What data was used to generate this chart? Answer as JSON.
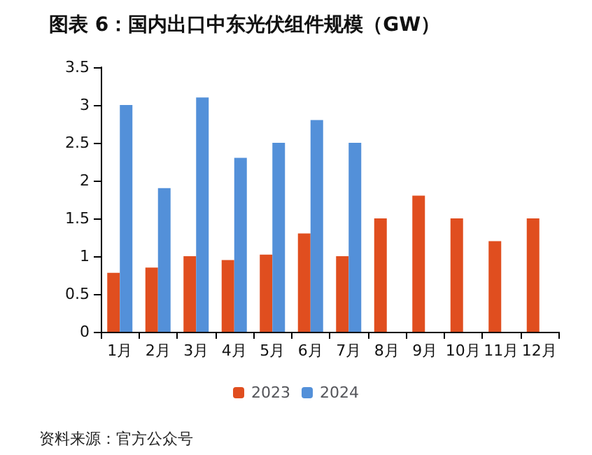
{
  "chart_data": {
    "type": "bar",
    "title": "图表 6：国内出口中东光伏组件规模（GW）",
    "categories": [
      "1月",
      "2月",
      "3月",
      "4月",
      "5月",
      "6月",
      "7月",
      "8月",
      "9月",
      "10月",
      "11月",
      "12月"
    ],
    "series": [
      {
        "name": "2023",
        "color": "#e04e1f",
        "values": [
          0.78,
          0.85,
          1.0,
          0.95,
          1.02,
          1.3,
          1.0,
          1.5,
          1.8,
          1.5,
          1.2,
          1.5
        ]
      },
      {
        "name": "2024",
        "color": "#5390d9",
        "values": [
          3.0,
          1.9,
          3.1,
          2.3,
          2.5,
          2.8,
          2.5,
          null,
          null,
          null,
          null,
          null
        ]
      }
    ],
    "ylim": [
      0,
      3.5
    ],
    "yticks": [
      0,
      0.5,
      1,
      1.5,
      2,
      2.5,
      3,
      3.5
    ],
    "grid": false,
    "legend": "bottom",
    "annotations": [
      "资料来源：官方公众号"
    ]
  }
}
